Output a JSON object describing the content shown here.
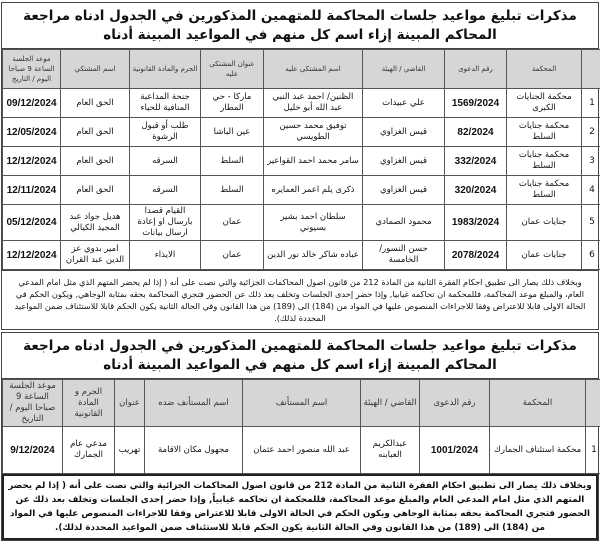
{
  "section1": {
    "title": "مذكرات تبليغ مواعيد جلسات المحاكمة للمتهمين المذكورين في الجدول ادناه مراجعة المحاكم المبينة إزاء اسم كل منهم في المواعيد المبينة أدناه",
    "headers": [
      "",
      "المحكمة",
      "رقم الدعوى",
      "القاضي / الهيئة",
      "اسم المشتكى عليه",
      "عنوان المشتكى عليه",
      "الجرم والمادة القانونية",
      "اسم المشتكي",
      "موعد الجلسة الساعة 9 صباحا اليوم / التاريخ"
    ],
    "rows": [
      [
        "1",
        "محكمة الجنايات الكبرى",
        "1569/2024",
        "علي عبيدات",
        "الظنين/ احمد عبد النبي عبد الله أبو خليل",
        "ماركا - حي المطار",
        "جنحة المداعبة المنافية للحياء",
        "الحق العام",
        "09/12/2024"
      ],
      [
        "2",
        "محكمة جنايات السلط",
        "82/2024",
        "قيس الغزاوي",
        "توفيق محمد حسين الطويسي",
        "عين الباشا",
        "طلب أو قبول الرشوة",
        "الحق العام",
        "12/05/2024"
      ],
      [
        "3",
        "محكمة جنايات السلط",
        "332/2024",
        "قيس الغزاوي",
        "سامر محمد احمد القواعير",
        "السلط",
        "السرقه",
        "الحق العام",
        "12/12/2024"
      ],
      [
        "4",
        "محكمة جنايات السلط",
        "320/2024",
        "قيس الغزاوي",
        "ذكرى يلم اعمر العمايره",
        "السلط",
        "السرقه",
        "الحق العام",
        "12/11/2024"
      ],
      [
        "5",
        "جنايات عمان",
        "1983/2024",
        "محمود الصمادي",
        "سلطان احمد بشير بسيوني",
        "عمان",
        "القيام قصدا بارسال او إعادة ارسال بيانات",
        "هديل جواد عبد المجيد الكيالي",
        "05/12/2024"
      ],
      [
        "6",
        "جنايات عمان",
        "2078/2024",
        "حسن النسور/ الخامسة",
        "عباده شاكر خالد نور الدين",
        "عمان",
        "الايذاء",
        "امير بدوي عز الدين عبد القران",
        "12/12/2024"
      ]
    ],
    "notice": "وبخلاف ذلك يصار الى تطبيق احكام الفقرة الثانية من المادة 212 من قانون اصول المحاكمات الجزائية والتي نصت على أنه ( إذا لم يحضر المتهم الذي مثل امام المدعي العام، والمبلغ موعد المحاكمة، فللمحكمة ان تحاكمه غيابيا, وإذا حضر إحدى الجلسات وتخلف بعد ذلك عن الحضور فتجري المحاكمة بحقه بمثابة الوجاهي, ويكون الحكم في الحالة الاولى قابلا للاعتراض وفقا للاجراءات المنصوص عليها في المواد من (184) الى (189) من هذا القانون وفي الحالة الثانية يكون الحكم قابلا للاستئناف ضمن المواعيد المحددة لذلك)."
  },
  "section2": {
    "title": "مذكرات تبليغ مواعيد جلسات المحاكمة للمتهمين المذكورين في الجدول ادناه مراجعة المحاكم المبينة إزاء اسم كل منهم في المواعيد المبينة أدناه",
    "headers": [
      "",
      "المحكمة",
      "رقم الدعوى",
      "القاضي / الهيئة",
      "اسم المستأنف",
      "اسم المستأنف ضده",
      "عنوان",
      "الجرم و المادة القانونية",
      "موعد الجلسة الساعة 9 صباحا اليوم / التاريخ"
    ],
    "rows": [
      [
        "1",
        "محكمة استئناف الجمارك",
        "1001/2024",
        "عبدالكريم العبابنه",
        "عبد الله منصور احمد عثمان",
        "مجهول مكان الاقامة",
        "تهريب",
        "مدعي عام الجمارك",
        "9/12/2024"
      ]
    ],
    "notice": "وبخلاف ذلك يصار الى تطبيق احكام الفقرة الثانية من المادة 212 من قانون اصول المحاكمات الجزائية والتي نصت على أنه ( إذا لم يحضر المتهم الذي مثل امام المدعي العام والمبلغ موعد المحاكمة، فللمحكمة ان تحاكمه غيابياً, وإذا حضر إحدى الجلسات وتخلف بعد ذلك عن الحضور فتجري المحاكمة بحقه بمثابة الوجاهي ويكون الحكم في الحالة الاولى قابلا للاعتراض وفقا للاجراءات المنصوص عليها في المواد من (184) الى (189) من هذا القانون وفي الحالة الثانية يكون الحكم قابلا للاستئناف ضمن المواعيد المحددة لذلك)."
  }
}
